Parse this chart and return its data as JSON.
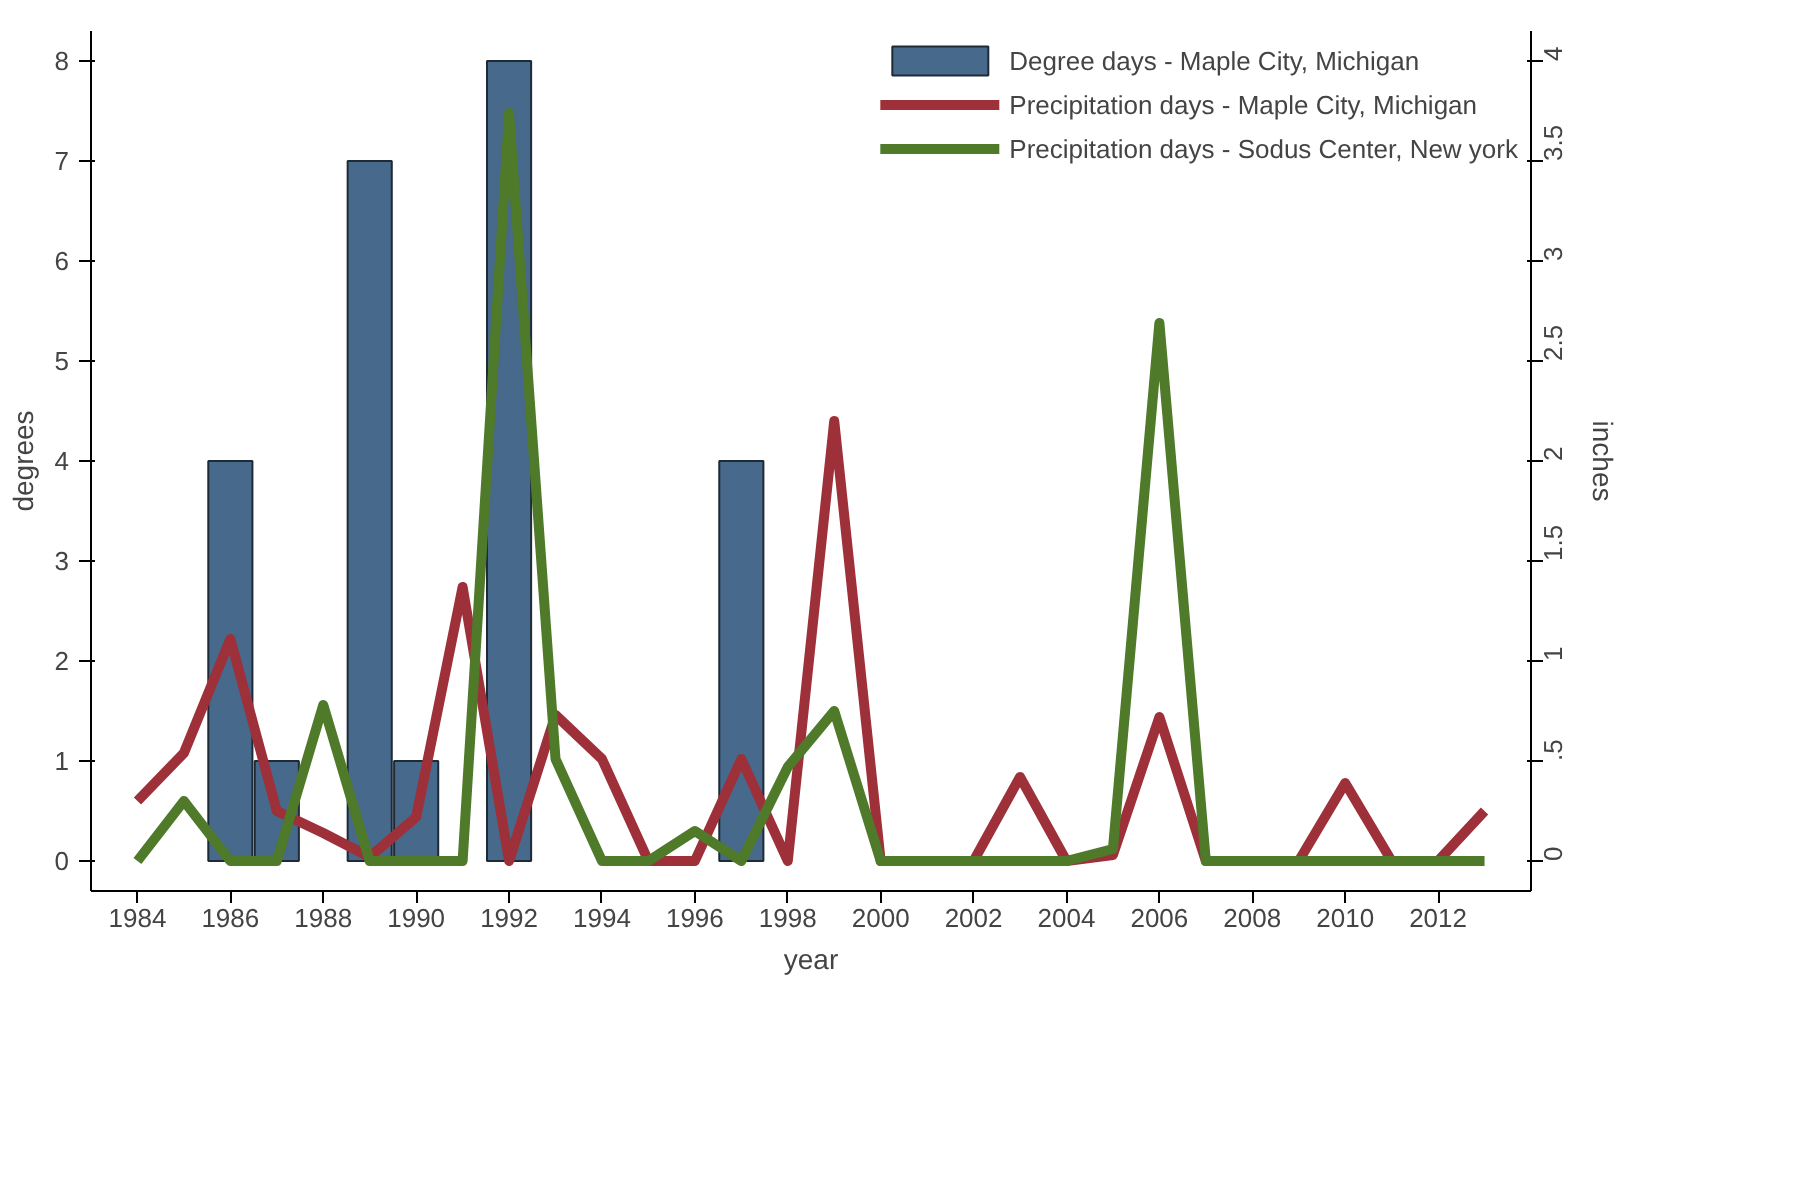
{
  "chart_data": {
    "type": "bar",
    "xlabel": "year",
    "ylabel": "degrees",
    "y2label": "inches",
    "x": [
      1984,
      1985,
      1986,
      1987,
      1988,
      1989,
      1990,
      1991,
      1992,
      1993,
      1994,
      1995,
      1996,
      1997,
      1998,
      1999,
      2000,
      2001,
      2002,
      2003,
      2004,
      2005,
      2006,
      2007,
      2008,
      2009,
      2010,
      2011,
      2012,
      2013
    ],
    "series": [
      {
        "name": "Degree days - Maple City, Michigan",
        "color": "#46698c",
        "values": [
          null,
          null,
          4,
          1,
          null,
          7,
          1,
          null,
          8,
          null,
          null,
          null,
          null,
          4,
          null,
          null,
          null,
          null,
          null,
          null,
          null,
          null,
          null,
          null,
          null,
          null,
          null,
          null,
          null,
          null
        ]
      },
      {
        "name": "Precipitation days - Maple City, Michigan",
        "type": "line",
        "axis": "y2",
        "color": "#9e3039",
        "values": [
          0.3,
          0.54,
          1.11,
          0.25,
          0.14,
          0.02,
          0.22,
          1.37,
          0,
          0.73,
          0.51,
          0,
          0,
          0.51,
          0,
          2.2,
          0,
          0,
          0,
          0.42,
          0,
          0.03,
          0.72,
          0,
          0,
          0,
          0.39,
          0,
          0,
          0.25
        ]
      },
      {
        "name": "Precipitation days - Sodus Center, New york",
        "type": "line",
        "axis": "y2",
        "color": "#4e7a2a",
        "values": [
          0,
          0.3,
          0,
          0,
          0.78,
          0,
          0,
          0,
          3.74,
          0.51,
          0,
          0,
          0.15,
          0,
          0.47,
          0.75,
          0,
          0,
          0,
          0,
          0,
          0.06,
          2.69,
          0,
          0,
          0,
          0,
          0,
          0,
          0
        ]
      }
    ],
    "xlim": [
      1983,
      2014
    ],
    "xticks": [
      1984,
      1986,
      1988,
      1990,
      1992,
      1994,
      1996,
      1998,
      2000,
      2002,
      2004,
      2006,
      2008,
      2010,
      2012
    ],
    "ylim": [
      -0.3,
      8.3
    ],
    "yticks": [
      0,
      1,
      2,
      3,
      4,
      5,
      6,
      7,
      8
    ],
    "y2lim": [
      -0.15,
      4.15
    ],
    "y2ticks": [
      0,
      {
        "value": 0.5,
        "label": ".5"
      },
      1,
      1.5,
      2,
      2.5,
      3,
      3.5,
      4
    ],
    "grid": false,
    "legend": "top right",
    "marker": "none",
    "line_style": "solid"
  }
}
